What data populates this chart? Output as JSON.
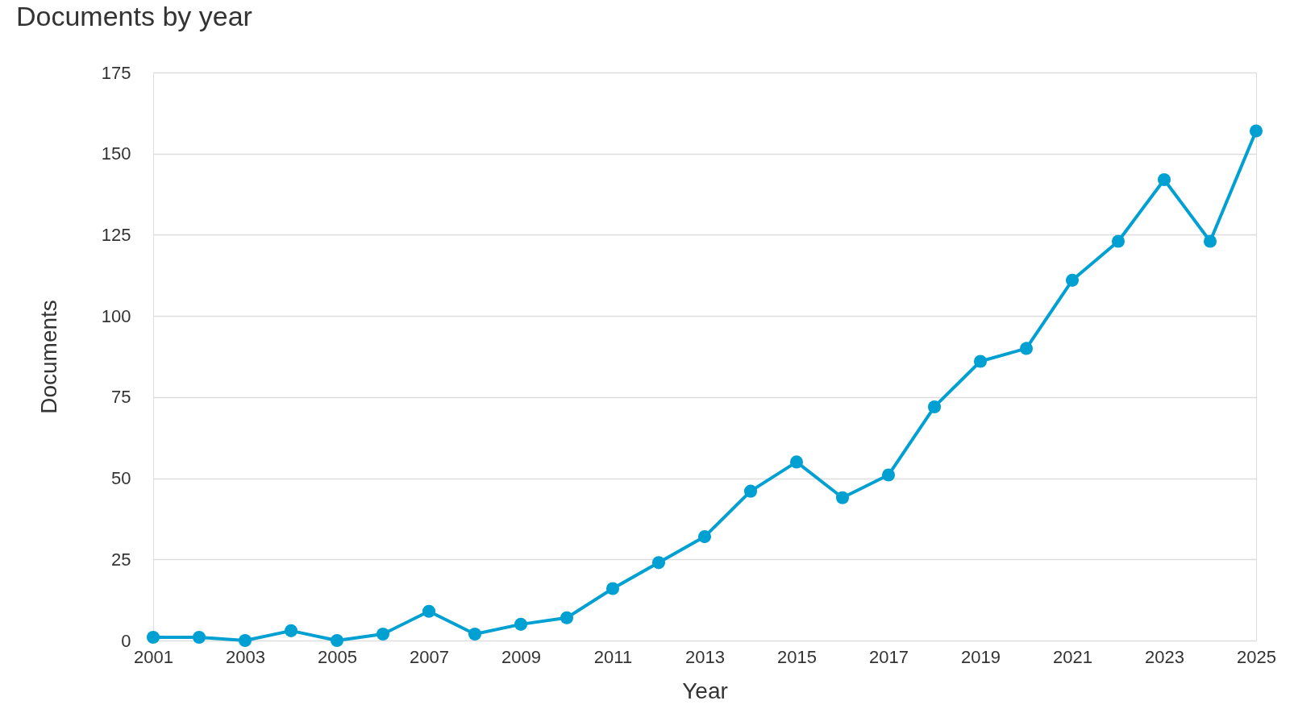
{
  "chart_data": {
    "type": "line",
    "title": "Documents by year",
    "xlabel": "Year",
    "ylabel": "Documents",
    "x": [
      2001,
      2002,
      2003,
      2004,
      2005,
      2006,
      2007,
      2008,
      2009,
      2010,
      2011,
      2012,
      2013,
      2014,
      2015,
      2016,
      2017,
      2018,
      2019,
      2020,
      2021,
      2022,
      2023,
      2024,
      2025
    ],
    "series": [
      {
        "color": "#00a0d2",
        "values": [
          1,
          1,
          0,
          3,
          0,
          2,
          9,
          2,
          5,
          7,
          16,
          24,
          32,
          46,
          55,
          44,
          51,
          72,
          86,
          90,
          111,
          123,
          142,
          123,
          157
        ]
      }
    ],
    "xlim": [
      2001,
      2025
    ],
    "xticks": [
      2001,
      2003,
      2005,
      2007,
      2009,
      2011,
      2013,
      2015,
      2017,
      2019,
      2021,
      2023,
      2025
    ],
    "ylim": [
      0,
      175
    ],
    "yticks": [
      0,
      25,
      50,
      75,
      100,
      125,
      150,
      175
    ],
    "grid": "y",
    "marker": "circle",
    "line_style": "solid"
  }
}
